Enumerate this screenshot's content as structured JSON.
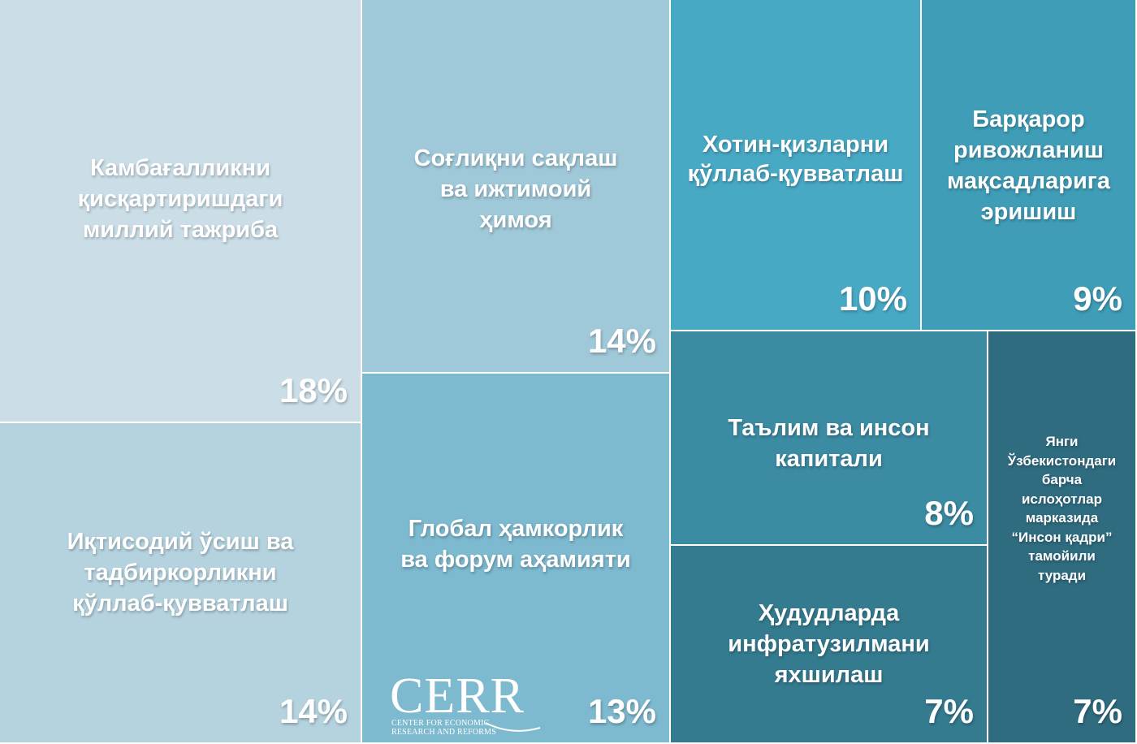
{
  "chart_data": {
    "type": "treemap",
    "items": [
      {
        "label": "Камбағалликни\nқисқартиришдаги\nмиллий тажриба",
        "value": 18,
        "display": "18%",
        "color": "#cbdee8"
      },
      {
        "label": "Иқтисодий ўсиш ва\nтадбиркорликни\nқўллаб-қувватлаш",
        "value": 14,
        "display": "14%",
        "color": "#b5d3df"
      },
      {
        "label": "Соғлиқни сақлаш\nва ижтимоий\nҳимоя",
        "value": 14,
        "display": "14%",
        "color": "#9fc8d8"
      },
      {
        "label": "Глобал ҳамкорлик\nва форум аҳамияти",
        "value": 13,
        "display": "13%",
        "color": "#7db9cf"
      },
      {
        "label": "Хотин-қизларни\nқўллаб-қувватлаш",
        "value": 10,
        "display": "10%",
        "color": "#48a9c5"
      },
      {
        "label": "Барқарор\nривожланиш\nмақсадларига\nэришиш",
        "value": 9,
        "display": "9%",
        "color": "#3f9db7"
      },
      {
        "label": "Таълим ва инсон\nкапитали",
        "value": 8,
        "display": "8%",
        "color": "#3b8ba3"
      },
      {
        "label": "Ҳудудларда\nинфратузилмани\nяхшилаш",
        "value": 7,
        "display": "7%",
        "color": "#347b90"
      },
      {
        "label": "Янги\nЎзбекистондаги\nбарча\nислоҳотлар\nмарказида\n“Инсон қадри”\nтамойили\nтуради",
        "value": 7,
        "display": "7%",
        "color": "#2f6c80"
      }
    ]
  },
  "logo": {
    "name": "CERR",
    "subtitle_line1": "CENTER FOR ECONOMIC",
    "subtitle_line2": "RESEARCH AND REFORMS"
  }
}
